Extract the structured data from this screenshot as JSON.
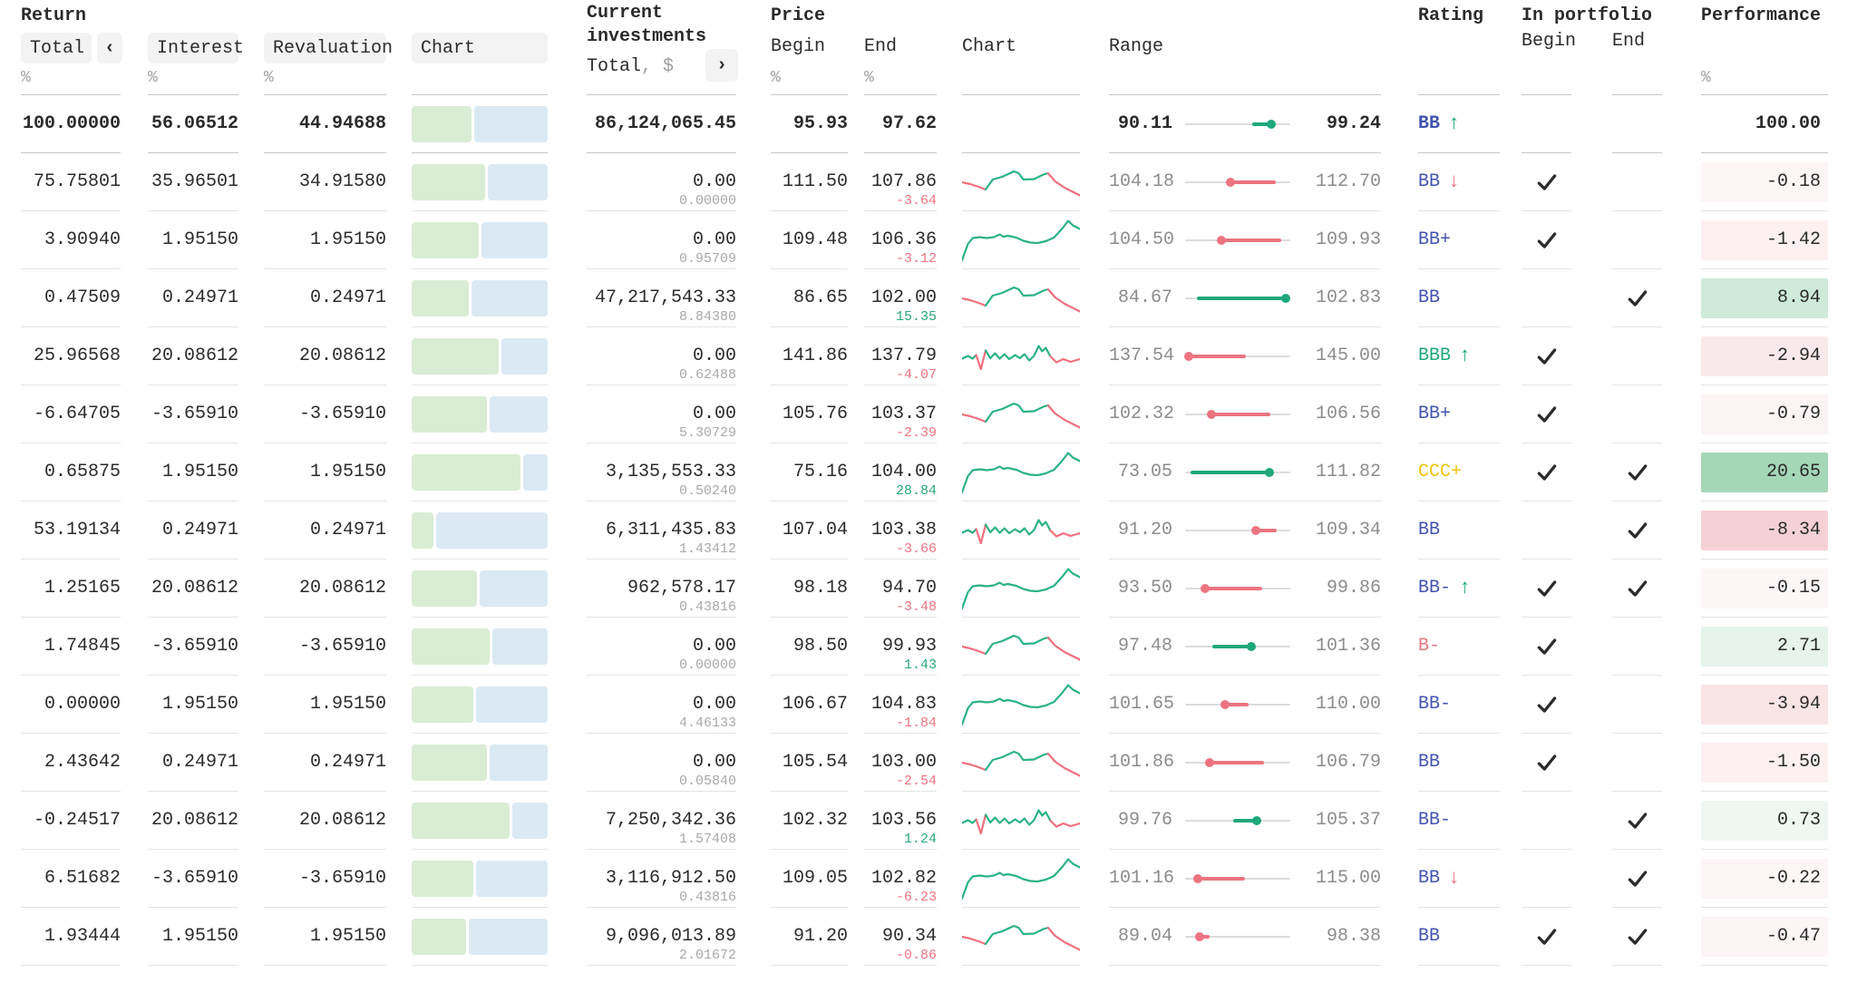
{
  "header": {
    "return_group": {
      "title": "Return",
      "total": "Total",
      "collapse_icon": "‹",
      "interest": "Interest",
      "revaluation": "Revaluation",
      "chart": "Chart",
      "unit": "%"
    },
    "investments_group": {
      "title_line1": "Current",
      "title_line2": "investments",
      "subtitle": "Total",
      "subtitle_unit": ", $",
      "expand_icon": "›"
    },
    "price_group": {
      "title": "Price",
      "begin": "Begin",
      "end": "End",
      "chart": "Chart",
      "range": "Range",
      "unit_begin": "%",
      "unit_end": "%"
    },
    "rating_title": "Rating",
    "portfolio_group": {
      "title": "In portfolio",
      "begin": "Begin",
      "end": "End"
    },
    "performance_group": {
      "title": "Performance",
      "unit": "%"
    }
  },
  "colors": {
    "green": "#1ea87c",
    "red": "#ec7480",
    "spark_green": "#2bb381",
    "spark_red": "#f0707e",
    "indigo": "#4253b0",
    "yellow": "#eec50a",
    "text": "#2b2b2b",
    "gray_sub": "#a8a8a8",
    "chg_green": "#2aa876",
    "chg_red": "#ee7380",
    "perf_pos_rgb": "76,175,111",
    "perf_neg_rgb": "222,104,115"
  },
  "spark_shapes": {
    "A": [
      {
        "color": "red",
        "pts": [
          [
            0,
            50
          ],
          [
            7,
            54
          ],
          [
            14,
            60
          ],
          [
            20,
            66
          ]
        ]
      },
      {
        "color": "green",
        "pts": [
          [
            20,
            66
          ],
          [
            26,
            44
          ],
          [
            34,
            38
          ],
          [
            44,
            26
          ],
          [
            48,
            30
          ],
          [
            52,
            44
          ],
          [
            61,
            43
          ],
          [
            69,
            33
          ],
          [
            73,
            30
          ]
        ]
      },
      {
        "color": "red",
        "pts": [
          [
            73,
            30
          ],
          [
            79,
            48
          ],
          [
            87,
            62
          ],
          [
            100,
            79
          ]
        ]
      }
    ],
    "B": [
      {
        "color": "green",
        "pts": [
          [
            0,
            94
          ],
          [
            5,
            58
          ],
          [
            9,
            45
          ],
          [
            15,
            43
          ],
          [
            21,
            45
          ],
          [
            27,
            43
          ],
          [
            32,
            37
          ],
          [
            35,
            42
          ],
          [
            39,
            40
          ],
          [
            46,
            44
          ],
          [
            52,
            51
          ],
          [
            58,
            55
          ],
          [
            64,
            56
          ],
          [
            71,
            52
          ],
          [
            78,
            44
          ],
          [
            85,
            24
          ],
          [
            90,
            7
          ],
          [
            94,
            17
          ],
          [
            100,
            25
          ]
        ]
      }
    ],
    "C": [
      {
        "color": "green",
        "pts": [
          [
            0,
            55
          ],
          [
            5,
            49
          ],
          [
            9,
            55
          ],
          [
            12,
            47
          ]
        ]
      },
      {
        "color": "red",
        "pts": [
          [
            12,
            47
          ],
          [
            16,
            78
          ],
          [
            20,
            37
          ]
        ]
      },
      {
        "color": "green",
        "pts": [
          [
            20,
            37
          ],
          [
            24,
            54
          ],
          [
            28,
            43
          ],
          [
            32,
            55
          ],
          [
            36,
            45
          ],
          [
            40,
            56
          ],
          [
            45,
            47
          ],
          [
            49,
            54
          ],
          [
            53,
            45
          ],
          [
            57,
            59
          ],
          [
            61,
            49
          ],
          [
            65,
            27
          ],
          [
            68,
            39
          ],
          [
            71,
            31
          ],
          [
            75,
            50
          ]
        ]
      },
      {
        "color": "red",
        "pts": [
          [
            75,
            50
          ],
          [
            80,
            63
          ],
          [
            86,
            56
          ],
          [
            92,
            62
          ],
          [
            100,
            56
          ]
        ]
      }
    ]
  },
  "rows": [
    {
      "is_total": true,
      "total": "100.00000",
      "interest": "56.06512",
      "revaluation": "44.94688",
      "bar_green_pct": 44,
      "invest": "86,124,065.45",
      "invest_sub": null,
      "begin": "95.93",
      "end": "97.62",
      "change": null,
      "change_dir": null,
      "spark": null,
      "range_min": "90.11",
      "range_max": "99.24",
      "rating": "BB",
      "rating_color": "indigo",
      "rating_arrow": "up",
      "in_begin": false,
      "in_end": false,
      "perf": "100.00"
    },
    {
      "total": "75.75801",
      "interest": "35.96501",
      "revaluation": "34.91580",
      "bar_green_pct": 54,
      "invest": "0.00",
      "invest_sub": "0.00000",
      "begin": "111.50",
      "end": "107.86",
      "change": "-3.64",
      "change_dir": "down",
      "spark": "A",
      "range_min": "104.18",
      "range_max": "112.70",
      "rating": "BB",
      "rating_color": "indigo",
      "rating_arrow": "down",
      "in_begin": true,
      "in_end": false,
      "perf": "-0.18"
    },
    {
      "total": "3.90940",
      "interest": "1.95150",
      "revaluation": "1.95150",
      "bar_green_pct": 49,
      "invest": "0.00",
      "invest_sub": "0.95709",
      "begin": "109.48",
      "end": "106.36",
      "change": "-3.12",
      "change_dir": "down",
      "spark": "B",
      "range_min": "104.50",
      "range_max": "109.93",
      "rating": "BB+",
      "rating_color": "indigo",
      "rating_arrow": null,
      "in_begin": true,
      "in_end": false,
      "perf": "-1.42"
    },
    {
      "total": "0.47509",
      "interest": "0.24971",
      "revaluation": "0.24971",
      "bar_green_pct": 42,
      "invest": "47,217,543.33",
      "invest_sub": "8.84380",
      "begin": "86.65",
      "end": "102.00",
      "change": "15.35",
      "change_dir": "up",
      "spark": "A",
      "range_min": "84.67",
      "range_max": "102.83",
      "rating": "BB",
      "rating_color": "indigo",
      "rating_arrow": null,
      "in_begin": false,
      "in_end": true,
      "perf": "8.94"
    },
    {
      "total": "25.96568",
      "interest": "20.08612",
      "revaluation": "20.08612",
      "bar_green_pct": 64,
      "invest": "0.00",
      "invest_sub": "0.62488",
      "begin": "141.86",
      "end": "137.79",
      "change": "-4.07",
      "change_dir": "down",
      "spark": "C",
      "range_min": "137.54",
      "range_max": "145.00",
      "rating": "BBB",
      "rating_color": "green",
      "rating_arrow": "up",
      "in_begin": true,
      "in_end": false,
      "perf": "-2.94"
    },
    {
      "total": "-6.64705",
      "interest": "-3.65910",
      "revaluation": "-3.65910",
      "bar_green_pct": 55,
      "invest": "0.00",
      "invest_sub": "5.30729",
      "begin": "105.76",
      "end": "103.37",
      "change": "-2.39",
      "change_dir": "down",
      "spark": "A",
      "range_min": "102.32",
      "range_max": "106.56",
      "rating": "BB+",
      "rating_color": "indigo",
      "rating_arrow": null,
      "in_begin": true,
      "in_end": false,
      "perf": "-0.79"
    },
    {
      "total": "0.65875",
      "interest": "1.95150",
      "revaluation": "1.95150",
      "bar_green_pct": 80,
      "invest": "3,135,553.33",
      "invest_sub": "0.50240",
      "begin": "75.16",
      "end": "104.00",
      "change": "28.84",
      "change_dir": "up",
      "spark": "B",
      "range_min": "73.05",
      "range_max": "111.82",
      "rating": "CCC+",
      "rating_color": "yellow",
      "rating_arrow": null,
      "in_begin": true,
      "in_end": true,
      "perf": "20.65"
    },
    {
      "total": "53.19134",
      "interest": "0.24971",
      "revaluation": "0.24971",
      "bar_green_pct": 16,
      "invest": "6,311,435.83",
      "invest_sub": "1.43412",
      "begin": "107.04",
      "end": "103.38",
      "change": "-3.66",
      "change_dir": "down",
      "spark": "C",
      "range_min": "91.20",
      "range_max": "109.34",
      "rating": "BB",
      "rating_color": "indigo",
      "rating_arrow": null,
      "in_begin": false,
      "in_end": true,
      "perf": "-8.34"
    },
    {
      "total": "1.25165",
      "interest": "20.08612",
      "revaluation": "20.08612",
      "bar_green_pct": 48,
      "invest": "962,578.17",
      "invest_sub": "0.43816",
      "begin": "98.18",
      "end": "94.70",
      "change": "-3.48",
      "change_dir": "down",
      "spark": "B",
      "range_min": "93.50",
      "range_max": "99.86",
      "rating": "BB-",
      "rating_color": "indigo",
      "rating_arrow": "up",
      "in_begin": true,
      "in_end": true,
      "perf": "-0.15"
    },
    {
      "total": "1.74845",
      "interest": "-3.65910",
      "revaluation": "-3.65910",
      "bar_green_pct": 57,
      "invest": "0.00",
      "invest_sub": "0.00000",
      "begin": "98.50",
      "end": "99.93",
      "change": "1.43",
      "change_dir": "up",
      "spark": "A",
      "range_min": "97.48",
      "range_max": "101.36",
      "rating": "B-",
      "rating_color": "red",
      "rating_arrow": null,
      "in_begin": true,
      "in_end": false,
      "perf": "2.71"
    },
    {
      "total": "0.00000",
      "interest": "1.95150",
      "revaluation": "1.95150",
      "bar_green_pct": 45,
      "invest": "0.00",
      "invest_sub": "4.46133",
      "begin": "106.67",
      "end": "104.83",
      "change": "-1.84",
      "change_dir": "down",
      "spark": "B",
      "range_min": "101.65",
      "range_max": "110.00",
      "rating": "BB-",
      "rating_color": "indigo",
      "rating_arrow": null,
      "in_begin": true,
      "in_end": false,
      "perf": "-3.94"
    },
    {
      "total": "2.43642",
      "interest": "0.24971",
      "revaluation": "0.24971",
      "bar_green_pct": 55,
      "invest": "0.00",
      "invest_sub": "0.05840",
      "begin": "105.54",
      "end": "103.00",
      "change": "-2.54",
      "change_dir": "down",
      "spark": "A",
      "range_min": "101.86",
      "range_max": "106.79",
      "rating": "BB",
      "rating_color": "indigo",
      "rating_arrow": null,
      "in_begin": true,
      "in_end": false,
      "perf": "-1.50"
    },
    {
      "total": "-0.24517",
      "interest": "20.08612",
      "revaluation": "20.08612",
      "bar_green_pct": 72,
      "invest": "7,250,342.36",
      "invest_sub": "1.57408",
      "begin": "102.32",
      "end": "103.56",
      "change": "1.24",
      "change_dir": "up",
      "spark": "C",
      "range_min": "99.76",
      "range_max": "105.37",
      "rating": "BB-",
      "rating_color": "indigo",
      "rating_arrow": null,
      "in_begin": false,
      "in_end": true,
      "perf": "0.73"
    },
    {
      "total": "6.51682",
      "interest": "-3.65910",
      "revaluation": "-3.65910",
      "bar_green_pct": 45,
      "invest": "3,116,912.50",
      "invest_sub": "0.43816",
      "begin": "109.05",
      "end": "102.82",
      "change": "-6.23",
      "change_dir": "down",
      "spark": "B",
      "range_min": "101.16",
      "range_max": "115.00",
      "rating": "BB",
      "rating_color": "indigo",
      "rating_arrow": "down",
      "in_begin": false,
      "in_end": true,
      "perf": "-0.22"
    },
    {
      "total": "1.93444",
      "interest": "1.95150",
      "revaluation": "1.95150",
      "bar_green_pct": 40,
      "invest": "9,096,013.89",
      "invest_sub": "2.01672",
      "begin": "91.20",
      "end": "90.34",
      "change": "-0.86",
      "change_dir": "down",
      "spark": "A",
      "range_min": "89.04",
      "range_max": "98.38",
      "rating": "BB",
      "rating_color": "indigo",
      "rating_arrow": null,
      "in_begin": true,
      "in_end": true,
      "perf": "-0.47"
    }
  ]
}
